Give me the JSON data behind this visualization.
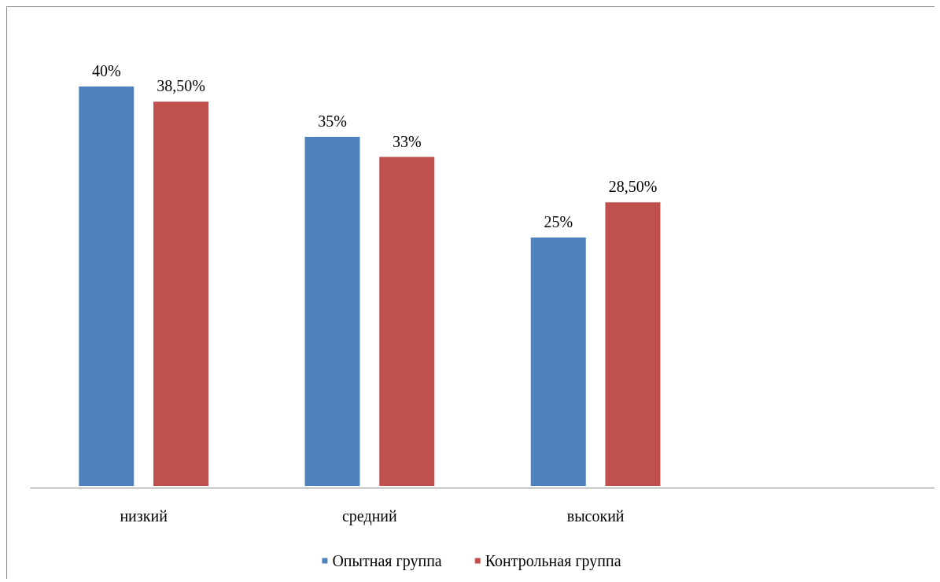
{
  "chart_data": {
    "type": "bar",
    "categories": [
      "низкий",
      "средний",
      "высокий",
      null
    ],
    "series": [
      {
        "name": "Опытная группа",
        "color": "#4f81bd",
        "values": [
          40,
          35,
          25,
          null
        ],
        "value_labels": [
          "40%",
          "35%",
          "25%",
          null
        ]
      },
      {
        "name": "Контрольная группа",
        "color": "#c0504d",
        "values": [
          38.5,
          33,
          28.5,
          null
        ],
        "value_labels": [
          "38,50%",
          "33%",
          "28,50%",
          null
        ]
      }
    ],
    "tick_labels": "x",
    "grid": false,
    "legend": "bottom"
  }
}
